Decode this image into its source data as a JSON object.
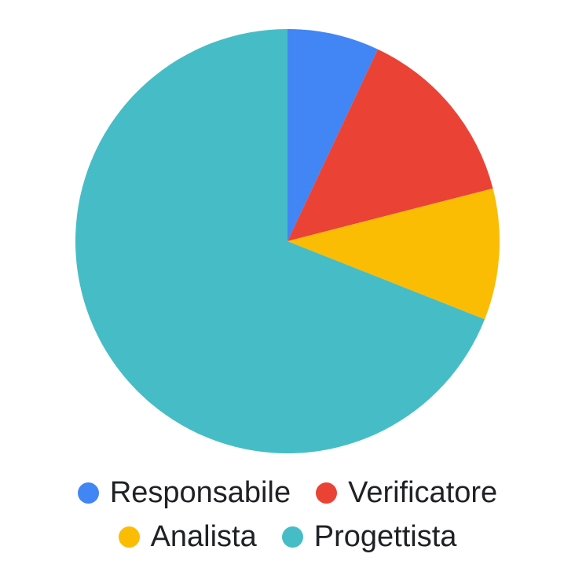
{
  "chart_data": {
    "type": "pie",
    "categories": [
      "Responsabile",
      "Verificatore",
      "Analista",
      "Progettista"
    ],
    "values": [
      7,
      14,
      10,
      69
    ],
    "colors": [
      "#4285F4",
      "#EA4335",
      "#FBBC04",
      "#46BDC6"
    ],
    "start_angle": "12 o'clock",
    "direction": "clockwise",
    "legend_position": "bottom"
  }
}
